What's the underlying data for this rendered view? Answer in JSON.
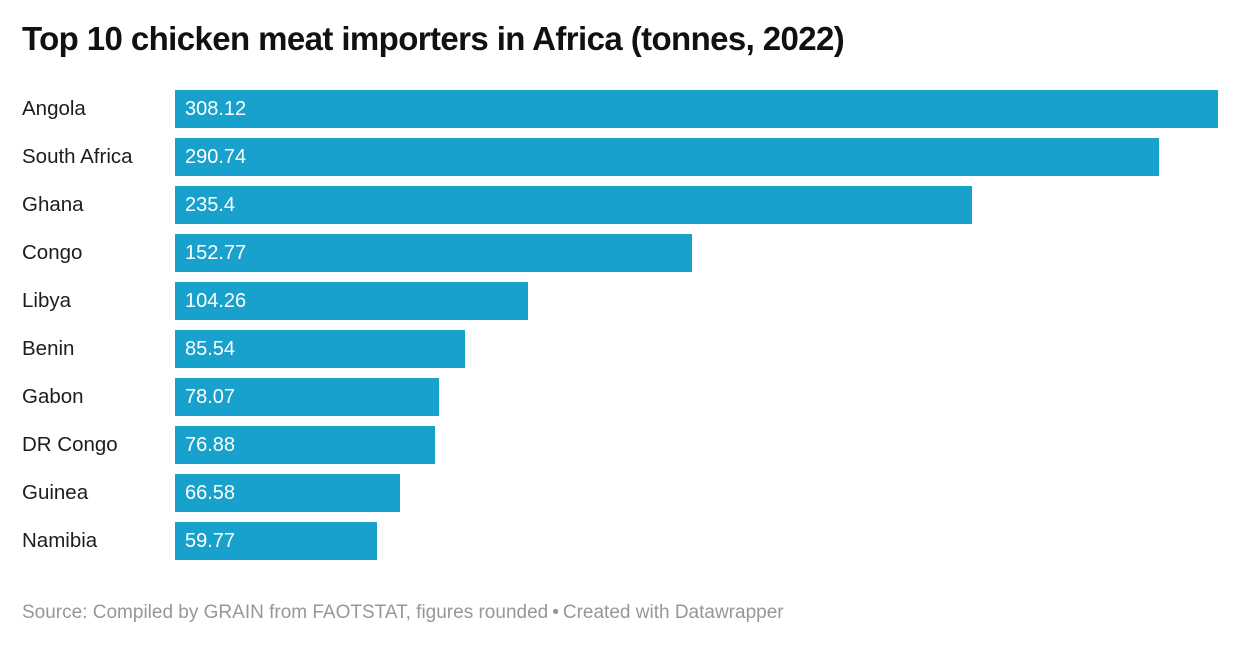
{
  "colors": {
    "bar": "#18a1cd",
    "title": "#111111",
    "label": "#1d1d1d",
    "value_text": "#ffffff",
    "footer_text": "#979797",
    "background": "#ffffff"
  },
  "chart_data": {
    "type": "bar",
    "orientation": "horizontal",
    "title": "Top 10 chicken meat importers in Africa (tonnes, 2022)",
    "unit": "tonnes",
    "year": "2022",
    "categories": [
      "Angola",
      "South Africa",
      "Ghana",
      "Congo",
      "Libya",
      "Benin",
      "Gabon",
      "DR Congo",
      "Guinea",
      "Namibia"
    ],
    "values": [
      308.12,
      290.74,
      235.4,
      152.77,
      104.26,
      85.54,
      78.07,
      76.88,
      66.58,
      59.77
    ],
    "value_labels": [
      "308.12",
      "290.74",
      "235.4",
      "152.77",
      "104.26",
      "85.54",
      "78.07",
      "76.88",
      "66.58",
      "59.77"
    ],
    "xlim": [
      0,
      308.12
    ],
    "grid": "off",
    "legend": "none",
    "bar_color": "#18a1cd"
  },
  "footer": {
    "source": "Source: Compiled by GRAIN from FAOTSTAT, figures rounded",
    "separator": "•",
    "credit": "Created with Datawrapper"
  }
}
